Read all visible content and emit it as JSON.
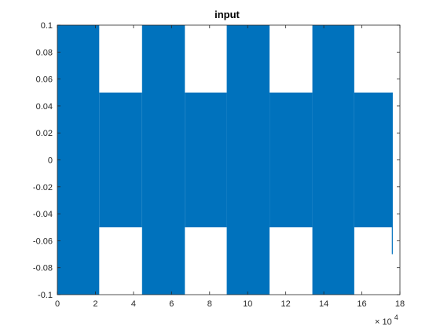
{
  "chart_data": {
    "type": "line",
    "title": "input",
    "xlabel": "",
    "ylabel": "",
    "xlim": [
      0,
      180000
    ],
    "ylim": [
      -0.1,
      0.1
    ],
    "x_tick_values": [
      0,
      20000,
      40000,
      60000,
      80000,
      100000,
      120000,
      140000,
      160000,
      180000
    ],
    "x_tick_labels": [
      "0",
      "2",
      "4",
      "6",
      "8",
      "10",
      "12",
      "14",
      "16",
      "18"
    ],
    "x_exponent_base": "× 10",
    "x_exponent_power": "4",
    "y_tick_values": [
      -0.1,
      -0.08,
      -0.06,
      -0.04,
      -0.02,
      0,
      0.02,
      0.04,
      0.06,
      0.08,
      0.1
    ],
    "y_tick_labels": [
      "-0.1",
      "-0.08",
      "-0.06",
      "-0.04",
      "-0.02",
      "0",
      "0.02",
      "0.04",
      "0.06",
      "0.08",
      "0.1"
    ],
    "grid": false,
    "box": true,
    "series": [
      {
        "color": "#0072bd",
        "segments": [
          {
            "x_start": 0,
            "x_end": 22000,
            "min": -0.1,
            "max": 0.1
          },
          {
            "x_start": 22000,
            "x_end": 44500,
            "min": -0.05,
            "max": 0.05
          },
          {
            "x_start": 44500,
            "x_end": 67000,
            "min": -0.1,
            "max": 0.1
          },
          {
            "x_start": 67000,
            "x_end": 89000,
            "min": -0.05,
            "max": 0.05
          },
          {
            "x_start": 89000,
            "x_end": 111500,
            "min": -0.1,
            "max": 0.1
          },
          {
            "x_start": 111500,
            "x_end": 134000,
            "min": -0.05,
            "max": 0.05
          },
          {
            "x_start": 134000,
            "x_end": 156000,
            "min": -0.1,
            "max": 0.1
          },
          {
            "x_start": 156000,
            "x_end": 176000,
            "min": -0.05,
            "max": 0.05
          }
        ],
        "end_spike": {
          "x": 176000,
          "min": -0.07,
          "max": 0.05
        }
      }
    ]
  }
}
